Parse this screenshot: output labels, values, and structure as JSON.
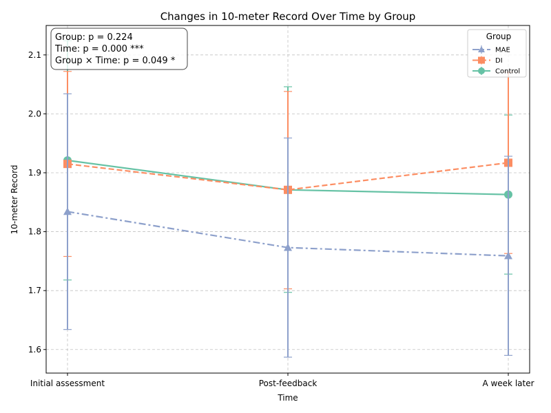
{
  "chart_data": {
    "type": "line",
    "title": "Changes in 10-meter Record Over Time by Group",
    "xlabel": "Time",
    "ylabel": "10-meter Record",
    "categories": [
      "Initial assessment",
      "Post-feedback",
      "A week later"
    ],
    "ylim": [
      1.56,
      2.15
    ],
    "yticks": [
      1.6,
      1.7,
      1.8,
      1.9,
      2.0,
      2.1
    ],
    "ytick_labels": [
      "1.6",
      "1.7",
      "1.8",
      "1.9",
      "2.0",
      "2.1"
    ],
    "grid": true,
    "legend": {
      "title": "Group",
      "placement": "top-right"
    },
    "annotations": [
      "Group: p = 0.224",
      "Time: p = 0.000 ***",
      "Group × Time: p = 0.049 *"
    ],
    "series": [
      {
        "name": "MAE",
        "values": [
          1.834,
          1.773,
          1.759
        ],
        "error_low": [
          1.634,
          1.587,
          1.59
        ],
        "error_high": [
          2.034,
          1.959,
          1.928
        ],
        "color": "#8da0cb",
        "marker": "triangle",
        "line_style": "dashdot"
      },
      {
        "name": "DI",
        "values": [
          1.915,
          1.871,
          1.917
        ],
        "error_low": [
          1.758,
          1.703,
          1.763
        ],
        "error_high": [
          2.072,
          2.038,
          2.071
        ],
        "color": "#fc8d62",
        "marker": "square",
        "line_style": "dashed"
      },
      {
        "name": "Control",
        "values": [
          1.921,
          1.871,
          1.863
        ],
        "error_low": [
          1.718,
          1.697,
          1.728
        ],
        "error_high": [
          2.124,
          2.046,
          1.998
        ],
        "color": "#66c2a5",
        "marker": "circle",
        "line_style": "solid"
      }
    ]
  }
}
